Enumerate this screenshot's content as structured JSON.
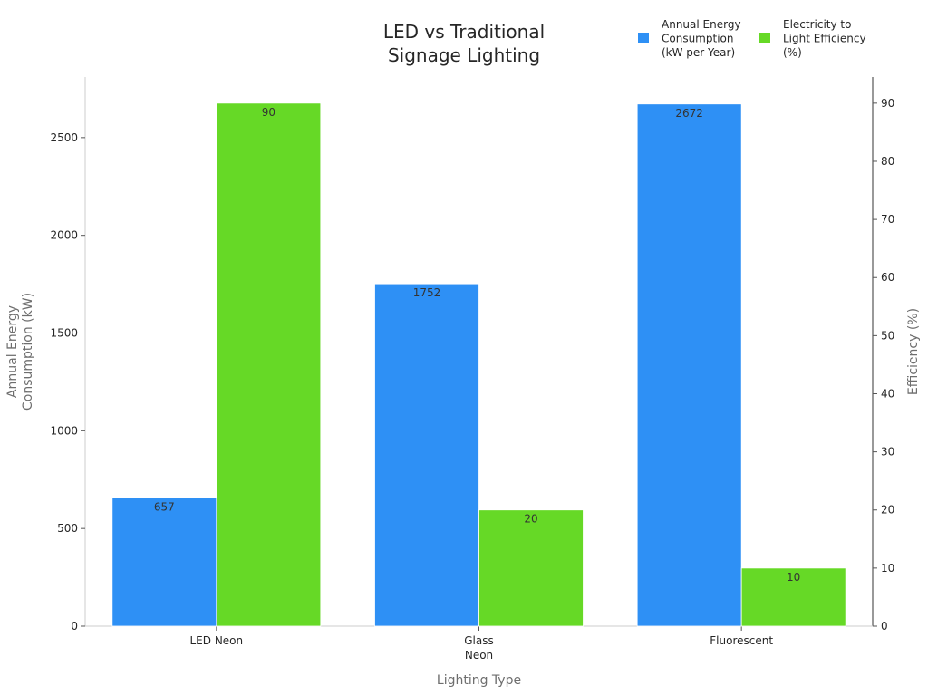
{
  "chart_data": {
    "type": "bar",
    "title": "LED vs Traditional Signage Lighting",
    "xlabel": "Lighting Type",
    "ylabel": "Annual Energy Consumption (kW)",
    "y2label": "Efficiency (%)",
    "categories": [
      "LED Neon",
      "Glass Neon",
      "Fluorescent"
    ],
    "series": [
      {
        "name": "Annual Energy Consumption (kW per Year)",
        "axis": "left",
        "color": "#2E90F5",
        "values": [
          657,
          1752,
          2672
        ]
      },
      {
        "name": "Electricity to Light Efficiency (%)",
        "axis": "right",
        "color": "#66D926",
        "values": [
          90,
          20,
          10
        ]
      }
    ],
    "ylim": [
      0,
      2810
    ],
    "y2lim": [
      0,
      94.5
    ],
    "yticks": [
      0,
      500,
      1000,
      1500,
      2000,
      2500
    ],
    "y2ticks": [
      0,
      10,
      20,
      30,
      40,
      50,
      60,
      70,
      80,
      90
    ],
    "grid": false,
    "legend_position": "top-right"
  }
}
